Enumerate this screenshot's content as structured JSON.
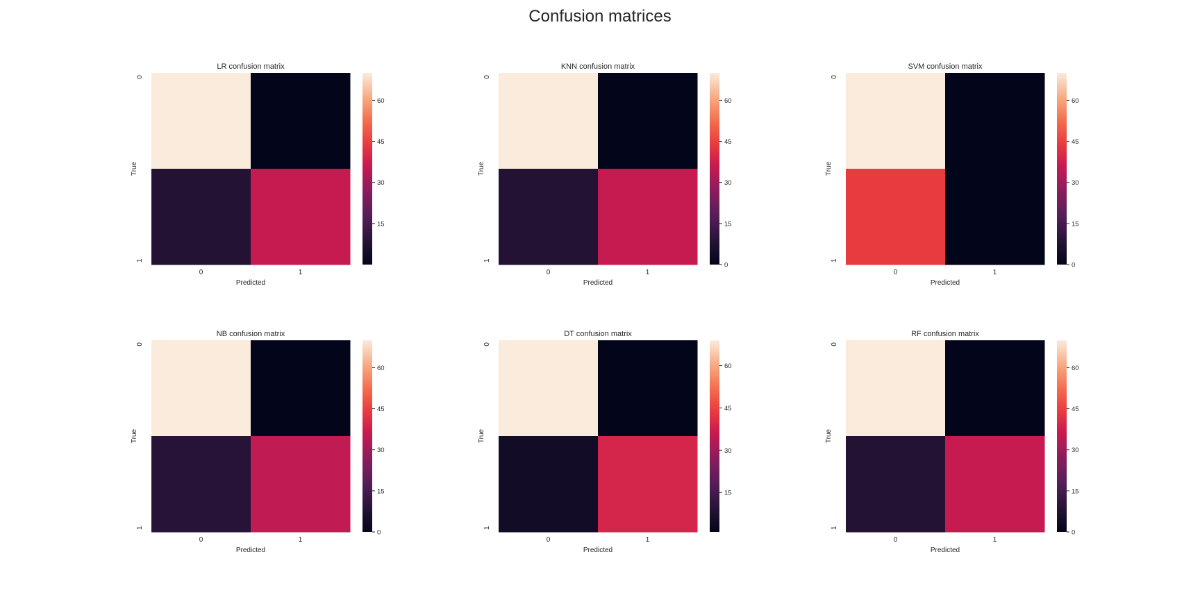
{
  "figure": {
    "title": "Confusion matrices"
  },
  "chart_data": [
    {
      "type": "heatmap",
      "title": "LR confusion matrix",
      "xlabel": "Predicted",
      "ylabel": "True",
      "x_categories": [
        "0",
        "1"
      ],
      "y_categories": [
        "0",
        "1"
      ],
      "values": [
        [
          70,
          0
        ],
        [
          8,
          36
        ]
      ],
      "colorbar": {
        "min": 0,
        "max": 70,
        "ticks": [
          15,
          30,
          45,
          60
        ]
      },
      "colormap": "rocket"
    },
    {
      "type": "heatmap",
      "title": "KNN confusion matrix",
      "xlabel": "Predicted",
      "ylabel": "True",
      "x_categories": [
        "0",
        "1"
      ],
      "y_categories": [
        "0",
        "1"
      ],
      "values": [
        [
          70,
          0
        ],
        [
          8,
          36
        ]
      ],
      "colorbar": {
        "min": 0,
        "max": 70,
        "ticks": [
          0,
          15,
          30,
          45,
          60
        ]
      },
      "colormap": "rocket"
    },
    {
      "type": "heatmap",
      "title": "SVM confusion matrix",
      "xlabel": "Predicted",
      "ylabel": "True",
      "x_categories": [
        "0",
        "1"
      ],
      "y_categories": [
        "0",
        "1"
      ],
      "values": [
        [
          70,
          0
        ],
        [
          44,
          0
        ]
      ],
      "colorbar": {
        "min": 0,
        "max": 70,
        "ticks": [
          0,
          15,
          30,
          45,
          60
        ]
      },
      "colormap": "rocket"
    },
    {
      "type": "heatmap",
      "title": "NB confusion matrix",
      "xlabel": "Predicted",
      "ylabel": "True",
      "x_categories": [
        "0",
        "1"
      ],
      "y_categories": [
        "0",
        "1"
      ],
      "values": [
        [
          70,
          0
        ],
        [
          9,
          35
        ]
      ],
      "colorbar": {
        "min": 0,
        "max": 70,
        "ticks": [
          0,
          15,
          30,
          45,
          60
        ]
      },
      "colormap": "rocket"
    },
    {
      "type": "heatmap",
      "title": "DT confusion matrix",
      "xlabel": "Predicted",
      "ylabel": "True",
      "x_categories": [
        "0",
        "1"
      ],
      "y_categories": [
        "0",
        "1"
      ],
      "values": [
        [
          69,
          1
        ],
        [
          5,
          39
        ]
      ],
      "colorbar": {
        "min": 1,
        "max": 69,
        "ticks": [
          15,
          30,
          45,
          60
        ]
      },
      "colormap": "rocket"
    },
    {
      "type": "heatmap",
      "title": "RF confusion matrix",
      "xlabel": "Predicted",
      "ylabel": "True",
      "x_categories": [
        "0",
        "1"
      ],
      "y_categories": [
        "0",
        "1"
      ],
      "values": [
        [
          70,
          0
        ],
        [
          8,
          36
        ]
      ],
      "colorbar": {
        "min": 0,
        "max": 70,
        "ticks": [
          0,
          15,
          30,
          45,
          60
        ]
      },
      "colormap": "rocket"
    }
  ]
}
